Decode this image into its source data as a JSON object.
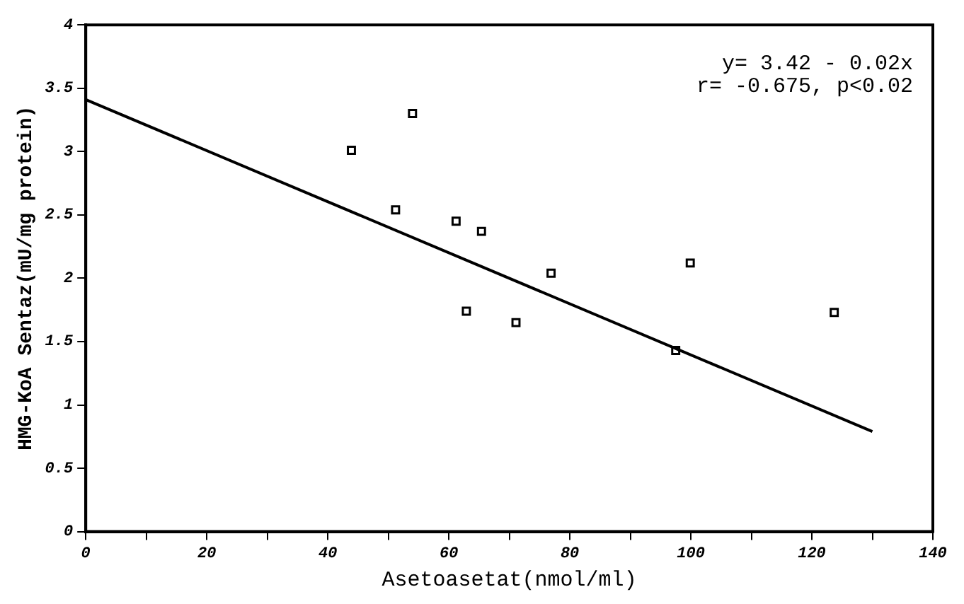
{
  "chart_data": {
    "type": "scatter",
    "xlabel": "Asetoasetat(nmol/ml)",
    "ylabel": "HMG-KoA Sentaz(mU/mg protein)",
    "annotations": [
      "y= 3.42 - 0.02x",
      "r= -0.675, p<0.02"
    ],
    "xlim": [
      0,
      140
    ],
    "ylim": [
      0,
      4
    ],
    "xticks": [
      0,
      {
        "value": 10,
        "label": null
      },
      20,
      {
        "value": 30,
        "label": null
      },
      40,
      {
        "value": 50,
        "label": null
      },
      60,
      {
        "value": 70,
        "label": null
      },
      80,
      {
        "value": 90,
        "label": null
      },
      100,
      {
        "value": 110,
        "label": null
      },
      120,
      {
        "value": 130,
        "label": null
      },
      140
    ],
    "yticks": [
      0,
      0.5,
      1,
      1.5,
      2,
      2.5,
      3,
      3.5,
      4
    ],
    "grid": false,
    "legend": false,
    "series": [
      {
        "type": "scatter",
        "marker": "square",
        "color": "#000000",
        "x": [
          43.9,
          54.0,
          51.2,
          61.2,
          65.4,
          62.9,
          99.9,
          76.9,
          71.1,
          97.5,
          123.7
        ],
        "values": [
          3.01,
          3.3,
          2.54,
          2.45,
          2.37,
          1.74,
          2.12,
          2.04,
          1.65,
          1.43,
          1.73
        ]
      },
      {
        "type": "line",
        "marker": "none",
        "line_style": "solid",
        "color": "#000000",
        "x": [
          0,
          130
        ],
        "values": [
          3.41,
          0.79
        ]
      }
    ]
  }
}
